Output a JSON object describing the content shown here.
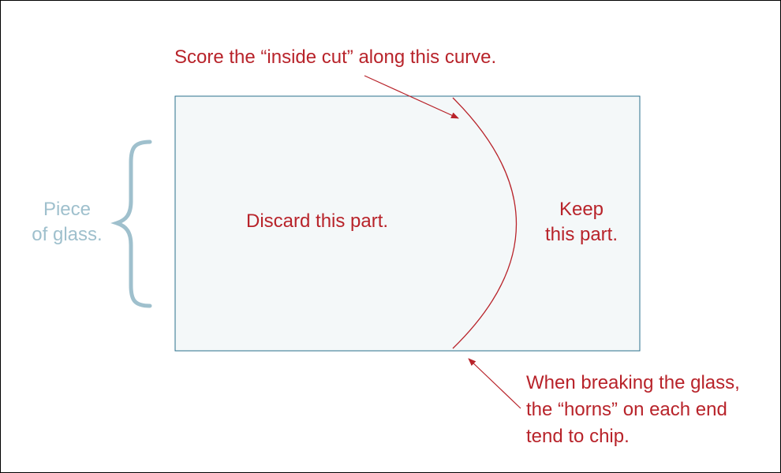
{
  "colors": {
    "annotation": "#b8232a",
    "glass_fill": "#f4f8f9",
    "glass_border": "#2a6f8c",
    "brace": "#9fc0cd"
  },
  "labels": {
    "score_instruction": "Score the “inside cut” along this curve.",
    "discard": "Discard this part.",
    "keep_line1": "Keep",
    "keep_line2": "this part.",
    "piece_line1": "Piece",
    "piece_line2": "of glass.",
    "horns_line1": "When breaking the glass,",
    "horns_line2": "the “horns” on each end",
    "horns_line3": "tend to chip."
  }
}
